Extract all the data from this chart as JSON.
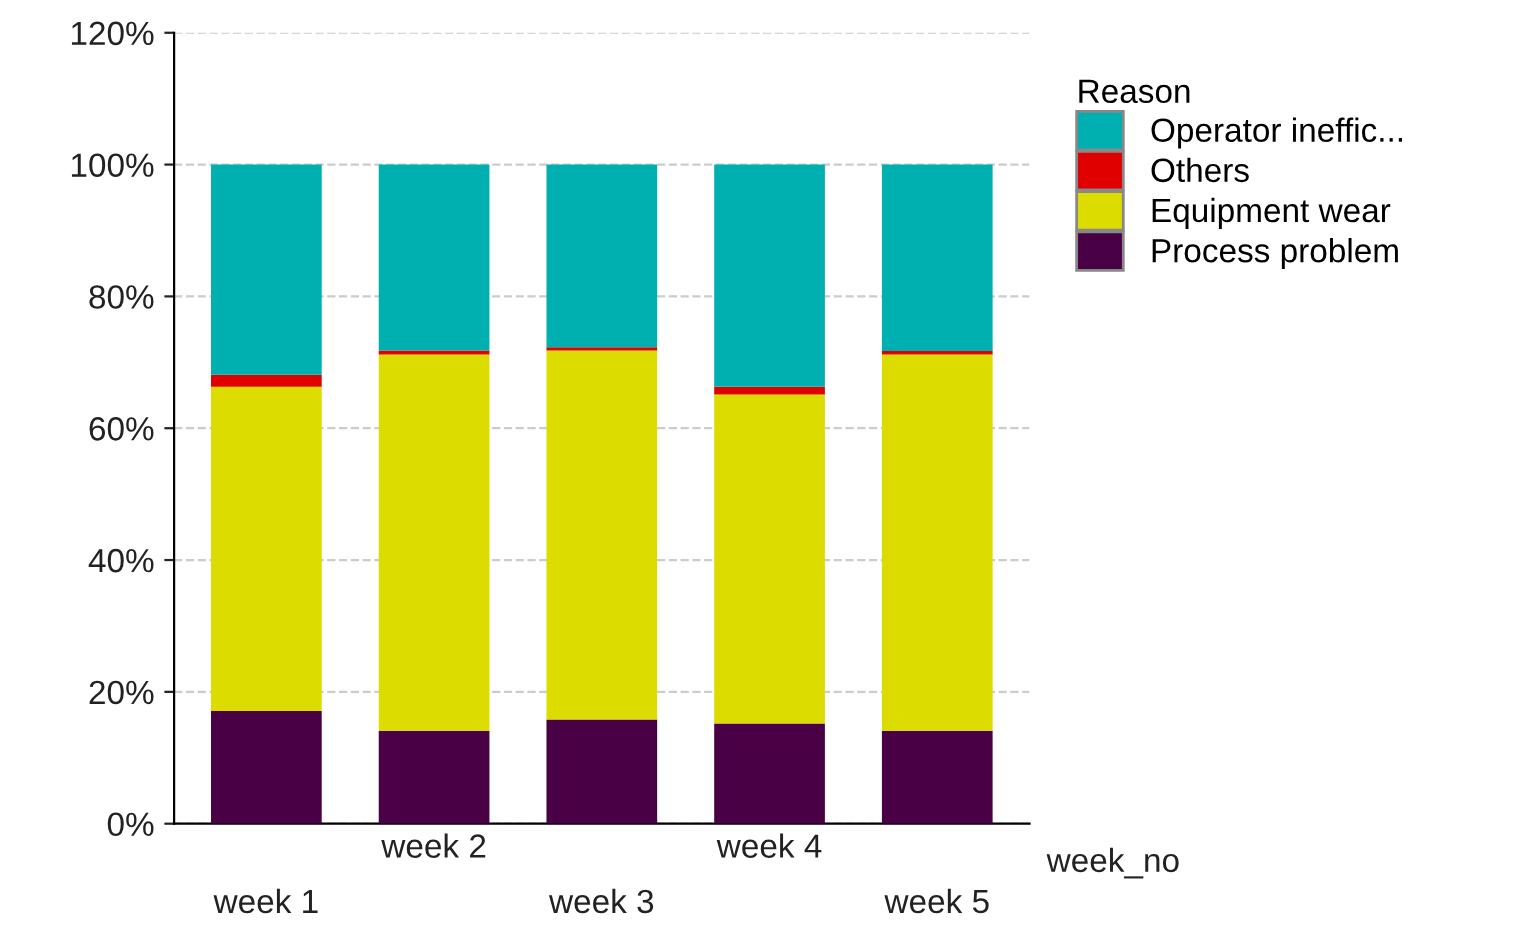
{
  "chart_data": {
    "type": "bar",
    "stacked": true,
    "categories": [
      "week 1",
      "week 2",
      "week 3",
      "week 4",
      "week 5"
    ],
    "xlabel": "week_no",
    "legend_title": "Reason",
    "legend": "right",
    "grid": "y",
    "ylim": [
      0,
      120
    ],
    "yticks": [
      {
        "value": 0,
        "label": "0%"
      },
      {
        "value": 20,
        "label": "20%"
      },
      {
        "value": 40,
        "label": "40%"
      },
      {
        "value": 60,
        "label": "60%"
      },
      {
        "value": 80,
        "label": "80%"
      },
      {
        "value": 100,
        "label": "100%"
      },
      {
        "value": 120,
        "label": "120%"
      }
    ],
    "series": [
      {
        "name": "Process problem",
        "color": "#4a0045",
        "values": [
          17.1,
          14.1,
          15.8,
          15.2,
          14.1
        ]
      },
      {
        "name": "Equipment wear",
        "color": "#dcdc00",
        "values": [
          49.2,
          57.1,
          56.0,
          49.9,
          57.1
        ]
      },
      {
        "name": "Others",
        "color": "#e00000",
        "values": [
          1.8,
          0.6,
          0.5,
          1.2,
          0.5
        ]
      },
      {
        "name": "Operator ineffic...",
        "color": "#00b0b0",
        "values": [
          31.9,
          28.2,
          27.7,
          33.7,
          28.3
        ]
      }
    ]
  }
}
